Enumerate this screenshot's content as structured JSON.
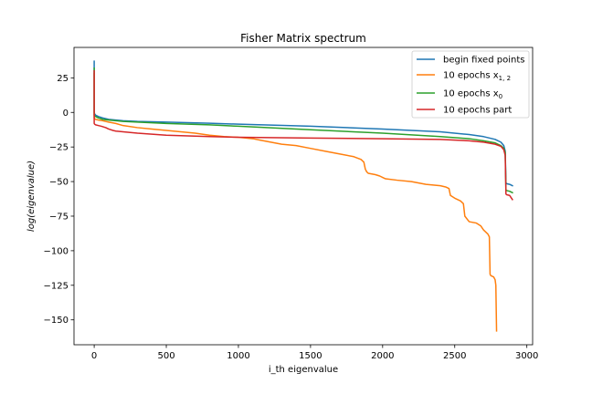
{
  "chart_data": {
    "type": "line",
    "title": "Fisher Matrix spectrum",
    "xlabel": "i_th eigenvalue",
    "ylabel": "log(eigenvalue)",
    "xlim": [
      -140,
      3040
    ],
    "ylim": [
      -168,
      47
    ],
    "xticks": [
      0,
      500,
      1000,
      1500,
      2000,
      2500,
      3000
    ],
    "xtick_labels": [
      "0",
      "500",
      "1000",
      "1500",
      "2000",
      "2500",
      "3000"
    ],
    "yticks": [
      25,
      0,
      -25,
      -50,
      -75,
      -100,
      -125,
      -150
    ],
    "ytick_labels": [
      "25",
      "0",
      "−25",
      "−50",
      "−75",
      "−100",
      "−125",
      "−150"
    ],
    "grid": false,
    "legend_position": "upper right",
    "series": [
      {
        "name": "begin fixed points",
        "legend_main": "begin fixed points",
        "legend_sub": "",
        "color": "#1f77b4",
        "x": [
          0,
          0,
          3,
          10,
          30,
          60,
          100,
          150,
          200,
          300,
          500,
          800,
          1000,
          1500,
          2000,
          2400,
          2600,
          2700,
          2780,
          2820,
          2840,
          2850,
          2855,
          2860,
          2880,
          2900
        ],
        "y": [
          37,
          0,
          -1,
          -2,
          -3,
          -4,
          -5,
          -5.5,
          -6,
          -6.5,
          -7,
          -7.8,
          -8.5,
          -10,
          -12,
          -14,
          -16,
          -17.5,
          -19.5,
          -21.5,
          -24,
          -28,
          -51,
          -51.5,
          -52,
          -53
        ]
      },
      {
        "name": "10 epochs x_{1,2}",
        "legend_main": "10 epochs x",
        "legend_sub": "1, 2",
        "color": "#ff7f0e",
        "x": [
          0,
          0,
          3,
          10,
          30,
          60,
          100,
          150,
          200,
          300,
          400,
          500,
          600,
          700,
          800,
          900,
          1000,
          1100,
          1150,
          1200,
          1300,
          1400,
          1500,
          1600,
          1650,
          1700,
          1800,
          1850,
          1870,
          1880,
          1890,
          1900,
          1950,
          1980,
          2000,
          2020,
          2100,
          2200,
          2300,
          2400,
          2440,
          2460,
          2470,
          2500,
          2540,
          2560,
          2570,
          2600,
          2650,
          2680,
          2700,
          2720,
          2730,
          2740,
          2745,
          2750,
          2770,
          2780,
          2785,
          2790
        ],
        "y": [
          28,
          -4,
          -4.5,
          -5,
          -5.5,
          -6,
          -7,
          -8,
          -9.5,
          -11,
          -12,
          -13,
          -14,
          -15,
          -16.5,
          -17.5,
          -18,
          -19,
          -20,
          -21,
          -23,
          -24,
          -26,
          -28,
          -29,
          -30,
          -32,
          -34,
          -36,
          -41,
          -43,
          -44,
          -45,
          -46,
          -47,
          -48,
          -49,
          -50,
          -52,
          -53,
          -54,
          -55,
          -60,
          -62,
          -64,
          -66,
          -75,
          -79,
          -80,
          -82,
          -85,
          -87,
          -88,
          -90,
          -117,
          -118,
          -119,
          -121,
          -125,
          -158
        ]
      },
      {
        "name": "10 epochs x_0",
        "legend_main": "10 epochs x",
        "legend_sub": "0",
        "color": "#2ca02c",
        "x": [
          0,
          0,
          3,
          10,
          30,
          60,
          100,
          150,
          200,
          300,
          500,
          800,
          1000,
          1500,
          2000,
          2400,
          2600,
          2700,
          2780,
          2820,
          2840,
          2850,
          2855,
          2860,
          2880,
          2900
        ],
        "y": [
          32,
          -2,
          -2.5,
          -3,
          -4,
          -5,
          -5.5,
          -6,
          -6.5,
          -7,
          -8,
          -9,
          -10,
          -12.5,
          -15,
          -17.5,
          -19,
          -20.5,
          -22,
          -24,
          -26,
          -29,
          -56,
          -56.5,
          -57,
          -58
        ]
      },
      {
        "name": "10 epochs part",
        "legend_main": "10 epochs part",
        "legend_sub": "",
        "color": "#d62728",
        "x": [
          0,
          0,
          3,
          10,
          30,
          50,
          80,
          100,
          130,
          150,
          200,
          300,
          500,
          800,
          1000,
          1500,
          2000,
          2400,
          2600,
          2700,
          2780,
          2820,
          2840,
          2850,
          2855,
          2860,
          2880,
          2900
        ],
        "y": [
          30,
          -8,
          -8.5,
          -9,
          -9.5,
          -10,
          -11,
          -12,
          -13,
          -13.5,
          -14,
          -15,
          -16.5,
          -17.5,
          -18,
          -18.5,
          -19,
          -19.5,
          -20.5,
          -21.5,
          -23,
          -24.5,
          -27,
          -31,
          -59,
          -59.5,
          -60,
          -63
        ]
      }
    ]
  }
}
